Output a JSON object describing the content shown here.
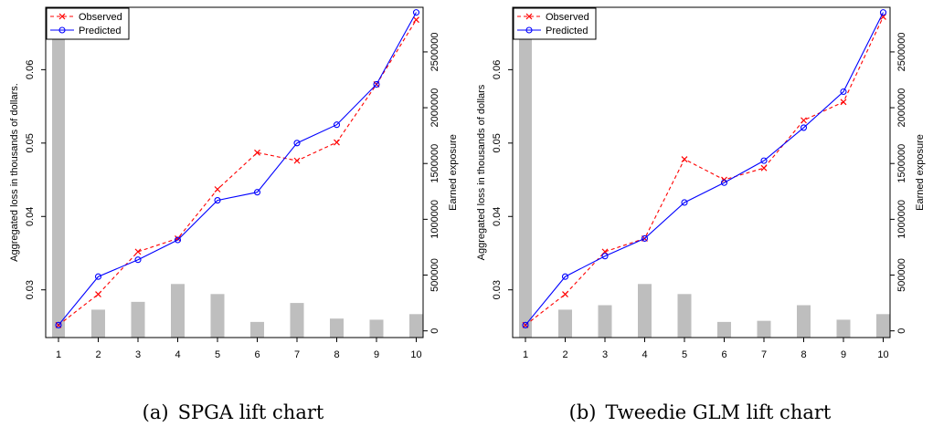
{
  "chart_data": [
    {
      "type": "line",
      "caption_label": "(a)",
      "caption_text": "SPGA lift chart",
      "title": "",
      "xlabel": "",
      "ylabel": "Aggregated loss in thousands of dollars.",
      "y2label": "Earned exposure",
      "categories": [
        "1",
        "2",
        "3",
        "4",
        "5",
        "6",
        "7",
        "8",
        "9",
        "10"
      ],
      "ylim": [
        0.0235,
        0.0685
      ],
      "yticks": [
        "0.03",
        "0.04",
        "0.05",
        "0.06"
      ],
      "y2lim": [
        -60000,
        2900000
      ],
      "y2ticks": [
        "0",
        "500000",
        "1000000",
        "1500000",
        "2000000",
        "2500000"
      ],
      "legend": {
        "position": "top-left",
        "entries": [
          "Observed",
          "Predicted"
        ]
      },
      "series": [
        {
          "name": "Observed",
          "color": "#ff0000",
          "marker": "x",
          "style": "dashed",
          "values": [
            0.0252,
            0.0294,
            0.0352,
            0.037,
            0.0437,
            0.0487,
            0.0476,
            0.0501,
            0.058,
            0.0668
          ]
        },
        {
          "name": "Predicted",
          "color": "#0000ff",
          "marker": "circle",
          "style": "solid",
          "values": [
            0.0252,
            0.0318,
            0.0341,
            0.0368,
            0.0422,
            0.0433,
            0.05,
            0.0525,
            0.058,
            0.0678
          ]
        }
      ],
      "exposure": [
        2870000,
        190000,
        260000,
        420000,
        330000,
        80000,
        250000,
        110000,
        100000,
        150000
      ]
    },
    {
      "type": "line",
      "caption_label": "(b)",
      "caption_text": "Tweedie GLM lift chart",
      "title": "",
      "xlabel": "",
      "ylabel": "Aggregated loss in thousands of dollars",
      "y2label": "Earned exposure",
      "categories": [
        "1",
        "2",
        "3",
        "4",
        "5",
        "6",
        "7",
        "8",
        "9",
        "10"
      ],
      "ylim": [
        0.0235,
        0.0685
      ],
      "yticks": [
        "0.03",
        "0.04",
        "0.05",
        "0.06"
      ],
      "y2lim": [
        -60000,
        2900000
      ],
      "y2ticks": [
        "0",
        "500000",
        "1000000",
        "1500000",
        "2000000",
        "2500000"
      ],
      "legend": {
        "position": "top-left",
        "entries": [
          "Observed",
          "Predicted"
        ]
      },
      "series": [
        {
          "name": "Observed",
          "color": "#ff0000",
          "marker": "x",
          "style": "dashed",
          "values": [
            0.0252,
            0.0294,
            0.0352,
            0.037,
            0.0478,
            0.045,
            0.0466,
            0.0531,
            0.0556,
            0.0672
          ]
        },
        {
          "name": "Predicted",
          "color": "#0000ff",
          "marker": "circle",
          "style": "solid",
          "values": [
            0.0252,
            0.0318,
            0.0346,
            0.037,
            0.0419,
            0.0446,
            0.0476,
            0.0521,
            0.057,
            0.0678
          ]
        }
      ],
      "exposure": [
        2870000,
        190000,
        230000,
        420000,
        330000,
        80000,
        90000,
        230000,
        100000,
        150000
      ]
    }
  ]
}
